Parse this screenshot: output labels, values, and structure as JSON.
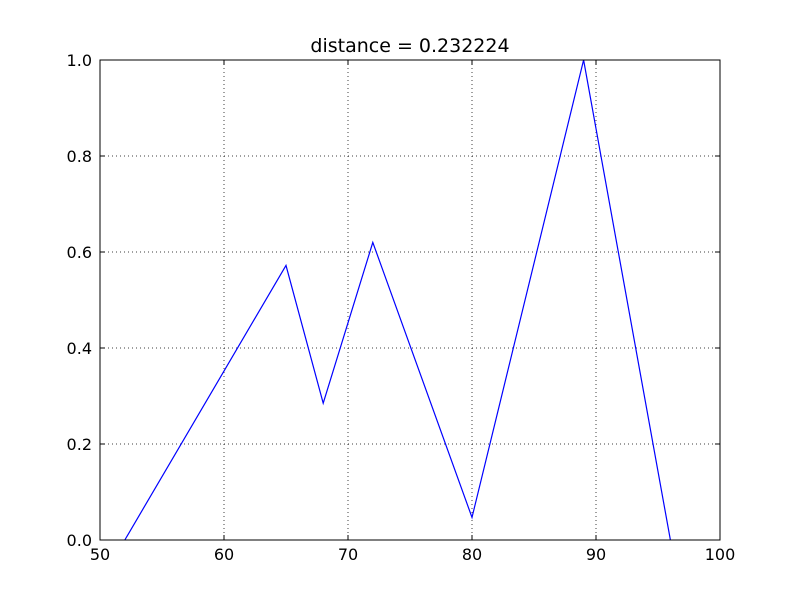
{
  "chart_data": {
    "type": "line",
    "title": "distance = 0.232224",
    "xlabel": "",
    "ylabel": "",
    "xlim": [
      50,
      100
    ],
    "ylim": [
      0.0,
      1.0
    ],
    "xticks": [
      50,
      60,
      70,
      80,
      90,
      100
    ],
    "xtick_labels": [
      "50",
      "60",
      "70",
      "80",
      "90",
      "100"
    ],
    "yticks": [
      0.0,
      0.2,
      0.4,
      0.6,
      0.8,
      1.0
    ],
    "ytick_labels": [
      "0.0",
      "0.2",
      "0.4",
      "0.6",
      "0.8",
      "1.0"
    ],
    "grid": true,
    "series": [
      {
        "color": "#0000ff",
        "x": [
          52,
          65,
          68,
          72,
          80,
          89,
          96
        ],
        "y": [
          0.0,
          0.572,
          0.285,
          0.62,
          0.047,
          1.0,
          0.0
        ]
      }
    ]
  }
}
